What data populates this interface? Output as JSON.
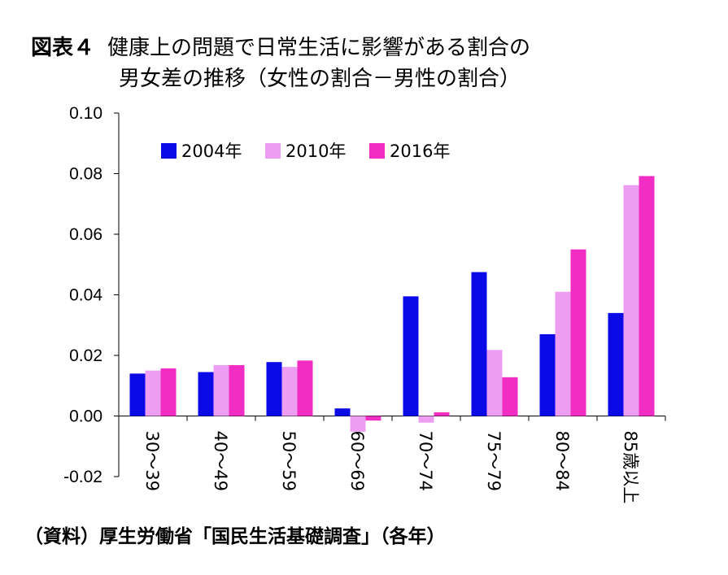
{
  "header": {
    "label": "図表４",
    "title_line1": "健康上の問題で日常生活に影響がある割合の",
    "title_line2": "男女差の推移（女性の割合－男性の割合）"
  },
  "source": "（資料）厚生労働省「国民生活基礎調査」（各年）",
  "chart_data": {
    "type": "bar",
    "categories": [
      "30～39",
      "40～49",
      "50～59",
      "60～69",
      "70～74",
      "75～79",
      "80～84",
      "85歳以上"
    ],
    "series": [
      {
        "name": "2004年",
        "color": "#0a0ae6",
        "values": [
          0.014,
          0.0145,
          0.0178,
          0.0025,
          0.0395,
          0.0475,
          0.027,
          0.034
        ]
      },
      {
        "name": "2010年",
        "color": "#ee9ef2",
        "values": [
          0.015,
          0.0168,
          0.0162,
          -0.0052,
          -0.0022,
          0.0218,
          0.041,
          0.0762
        ]
      },
      {
        "name": "2016年",
        "color": "#f22dc3",
        "values": [
          0.0157,
          0.0168,
          0.0183,
          -0.0015,
          0.0012,
          0.0128,
          0.055,
          0.0792
        ]
      }
    ],
    "y_ticks": [
      "0.10",
      "0.08",
      "0.06",
      "0.04",
      "0.02",
      "0.00",
      "-0.02"
    ],
    "ylim": [
      -0.02,
      0.1
    ],
    "legend_position": "top-left"
  }
}
